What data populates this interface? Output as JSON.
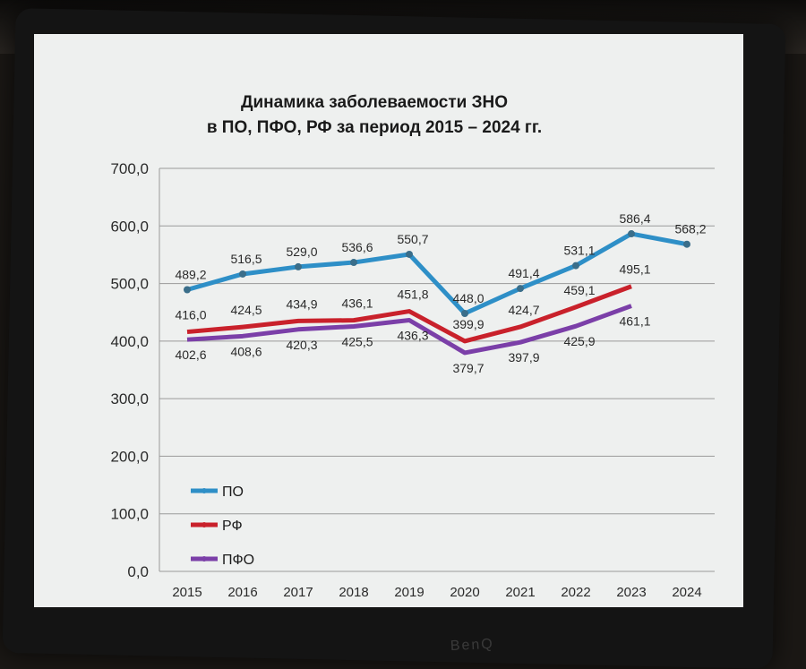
{
  "chart_data": {
    "type": "line",
    "title_line1": "Динамика заболеваемости ЗНО",
    "title_line2": "в ПО, ПФО, РФ за период  2015 – 2024 гг.",
    "categories": [
      "2015",
      "2016",
      "2017",
      "2018",
      "2019",
      "2020",
      "2021",
      "2022",
      "2023",
      "2024"
    ],
    "y_ticks": [
      "0,0",
      "100,0",
      "200,0",
      "300,0",
      "400,0",
      "500,0",
      "600,0",
      "700,0"
    ],
    "ylim": [
      0,
      700
    ],
    "grid": true,
    "legend_position": "bottom-left",
    "series": [
      {
        "name": "ПО",
        "color": "#2e8fc7",
        "values": [
          489.2,
          516.5,
          529.0,
          536.6,
          550.7,
          448.0,
          491.4,
          531.1,
          586.4,
          568.2
        ],
        "labels": [
          "489,2",
          "516,5",
          "529,0",
          "536,6",
          "550,7",
          "448,0",
          "491,4",
          "531,1",
          "586,4",
          "568,2"
        ]
      },
      {
        "name": "РФ",
        "color": "#c9212b",
        "values": [
          416.0,
          424.5,
          434.9,
          436.1,
          451.8,
          399.9,
          424.7,
          459.1,
          495.1,
          null
        ],
        "labels": [
          "416,0",
          "424,5",
          "434,9",
          "436,1",
          "451,8",
          "399,9",
          "424,7",
          "459,1",
          "495,1",
          ""
        ]
      },
      {
        "name": "ПФО",
        "color": "#7b3fa8",
        "values": [
          402.6,
          408.6,
          420.3,
          425.5,
          436.3,
          379.7,
          397.9,
          425.9,
          461.1,
          null
        ],
        "labels": [
          "402,6",
          "408,6",
          "420,3",
          "425,5",
          "436,3",
          "379,7",
          "397,9",
          "425,9",
          "461,1",
          ""
        ]
      }
    ]
  }
}
